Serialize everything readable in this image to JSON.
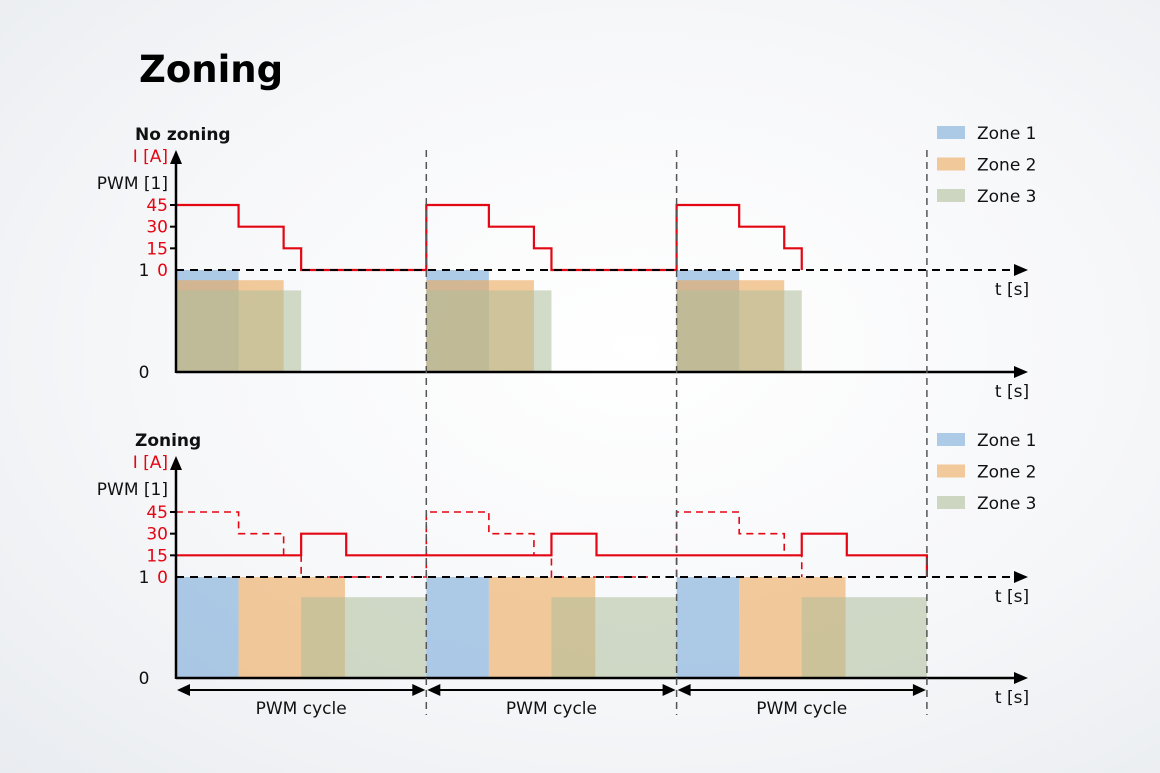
{
  "title": "Zoning",
  "colors": {
    "current": "#e30613",
    "zone1": "#7aaad8",
    "zone2": "#eca95a",
    "zone3": "#afbe9b",
    "axis": "#000000",
    "divider": "#555555"
  },
  "axis": {
    "current_label": "I [A]",
    "pwm_label": "PWM [1]",
    "time_label": "t [s]",
    "current_ticks": [
      "45",
      "30",
      "15",
      "0"
    ],
    "pwm_ticks": [
      "1",
      "0"
    ]
  },
  "legend": [
    "Zone 1",
    "Zone 2",
    "Zone 3"
  ],
  "cycle_label": "PWM cycle",
  "cycles": 3,
  "panels": [
    {
      "title": "No zoning",
      "current_steps": [
        {
          "from": 0,
          "to": 0.25,
          "I": 45
        },
        {
          "from": 0.25,
          "to": 0.43,
          "I": 30
        },
        {
          "from": 0.43,
          "to": 0.5,
          "I": 15
        },
        {
          "from": 0.5,
          "to": 1,
          "I": 0
        }
      ],
      "zones": [
        {
          "from": 0,
          "to": 0.25,
          "pwm": 1
        },
        {
          "from": 0,
          "to": 0.43,
          "pwm": 0.9
        },
        {
          "from": 0,
          "to": 0.5,
          "pwm": 0.8
        }
      ]
    },
    {
      "title": "Zoning",
      "reference_steps": [
        {
          "from": 0,
          "to": 0.25,
          "I": 45
        },
        {
          "from": 0.25,
          "to": 0.43,
          "I": 30
        },
        {
          "from": 0.43,
          "to": 0.5,
          "I": 15
        },
        {
          "from": 0.5,
          "to": 1,
          "I": 0
        }
      ],
      "current_steps": [
        {
          "from": 0,
          "to": 0.5,
          "I": 15
        },
        {
          "from": 0.5,
          "to": 0.68,
          "I": 30
        },
        {
          "from": 0.68,
          "to": 1,
          "I": 15
        }
      ],
      "zones": [
        {
          "from": 0,
          "to": 0.25,
          "pwm": 1
        },
        {
          "from": 0.25,
          "to": 0.675,
          "pwm": 1
        },
        {
          "from": 0.5,
          "to": 1,
          "pwm": 0.8
        }
      ]
    }
  ]
}
